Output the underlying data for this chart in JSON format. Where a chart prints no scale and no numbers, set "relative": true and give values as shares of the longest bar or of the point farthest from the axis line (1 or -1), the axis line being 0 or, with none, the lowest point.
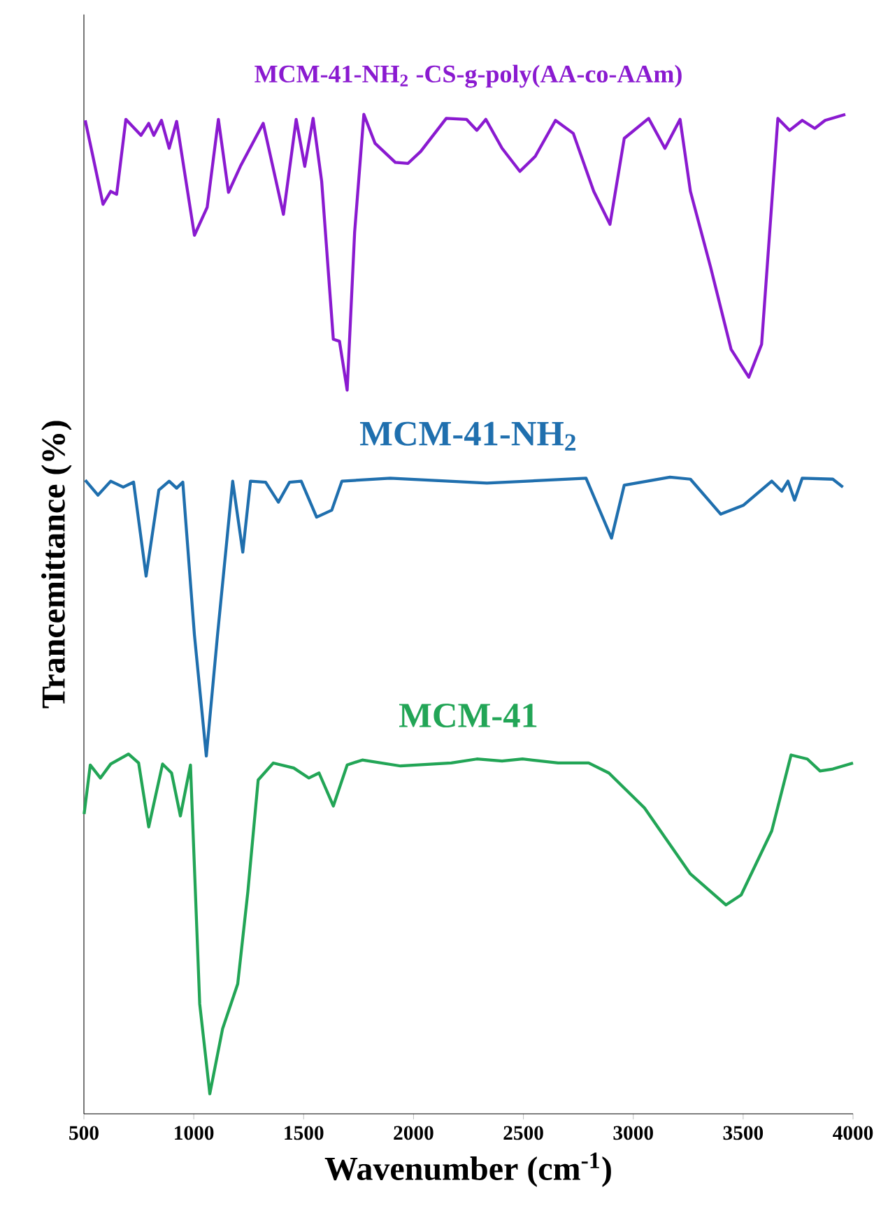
{
  "chart_data": {
    "type": "line",
    "relative": true,
    "xlabel": "Wavenumber (cm$^{-1}$)",
    "ylabel": "Trancemittance (%)",
    "xlim": [
      500,
      4000
    ],
    "xticks": [
      500,
      1000,
      1500,
      2000,
      2500,
      3000,
      3500,
      4000
    ],
    "series": [
      {
        "name": "MCM-41-NH$_{2}$ -CS-g-poly(AA-co-AAm)",
        "color": "#8a1ad0",
        "x": [
          506,
          541,
          587,
          622,
          649,
          691,
          760,
          795,
          818,
          853,
          888,
          922,
          1003,
          1061,
          1112,
          1158,
          1212,
          1316,
          1408,
          1466,
          1505,
          1543,
          1582,
          1635,
          1663,
          1698,
          1732,
          1774,
          1825,
          1917,
          1975,
          2033,
          2149,
          2241,
          2288,
          2329,
          2403,
          2484,
          2554,
          2646,
          2727,
          2820,
          2894,
          2959,
          3070,
          3144,
          3213,
          3260,
          3352,
          3445,
          3526,
          3584,
          3658,
          3711,
          3769,
          3826,
          3873,
          3965
        ],
        "values": [
          0.994,
          0.958,
          0.91,
          0.923,
          0.92,
          0.995,
          0.979,
          0.991,
          0.979,
          0.994,
          0.966,
          0.993,
          0.879,
          0.907,
          0.995,
          0.922,
          0.948,
          0.991,
          0.9,
          0.995,
          0.948,
          0.996,
          0.933,
          0.775,
          0.773,
          0.724,
          0.882,
          1.0,
          0.971,
          0.952,
          0.951,
          0.963,
          0.996,
          0.995,
          0.984,
          0.995,
          0.966,
          0.943,
          0.958,
          0.994,
          0.981,
          0.923,
          0.89,
          0.976,
          0.996,
          0.966,
          0.995,
          0.923,
          0.847,
          0.765,
          0.737,
          0.77,
          0.996,
          0.984,
          0.994,
          0.986,
          0.994,
          1.0
        ]
      },
      {
        "name": "MCM-41-NH$_{2}$",
        "color": "#1f6fae",
        "x": [
          506,
          564,
          622,
          679,
          726,
          783,
          841,
          888,
          922,
          950,
          1003,
          1057,
          1108,
          1177,
          1223,
          1258,
          1327,
          1385,
          1436,
          1489,
          1559,
          1628,
          1674,
          1894,
          2334,
          2785,
          2843,
          2901,
          2959,
          3167,
          3260,
          3398,
          3502,
          3630,
          3676,
          3704,
          3734,
          3769,
          3908,
          3954
        ],
        "values": [
          0.634,
          0.619,
          0.633,
          0.627,
          0.632,
          0.538,
          0.624,
          0.633,
          0.626,
          0.632,
          0.479,
          0.358,
          0.479,
          0.633,
          0.562,
          0.633,
          0.632,
          0.612,
          0.632,
          0.633,
          0.597,
          0.604,
          0.633,
          0.636,
          0.631,
          0.636,
          0.606,
          0.576,
          0.629,
          0.637,
          0.635,
          0.6,
          0.609,
          0.633,
          0.623,
          0.633,
          0.614,
          0.636,
          0.635,
          0.627
        ]
      },
      {
        "name": "MCM-41",
        "color": "#22a556",
        "x": [
          501,
          529,
          575,
          622,
          703,
          749,
          795,
          858,
          899,
          939,
          985,
          1027,
          1073,
          1131,
          1200,
          1246,
          1293,
          1362,
          1455,
          1524,
          1570,
          1635,
          1698,
          1767,
          1941,
          2172,
          2288,
          2403,
          2496,
          2658,
          2797,
          2889,
          3051,
          3260,
          3422,
          3491,
          3630,
          3718,
          3792,
          3850,
          3908,
          4000
        ],
        "values": [
          0.3,
          0.349,
          0.336,
          0.35,
          0.36,
          0.351,
          0.287,
          0.35,
          0.341,
          0.298,
          0.349,
          0.11,
          0.02,
          0.085,
          0.13,
          0.222,
          0.334,
          0.351,
          0.346,
          0.336,
          0.341,
          0.308,
          0.349,
          0.354,
          0.348,
          0.351,
          0.355,
          0.353,
          0.355,
          0.351,
          0.351,
          0.341,
          0.306,
          0.24,
          0.209,
          0.219,
          0.283,
          0.359,
          0.355,
          0.343,
          0.345,
          0.351
        ]
      }
    ]
  }
}
